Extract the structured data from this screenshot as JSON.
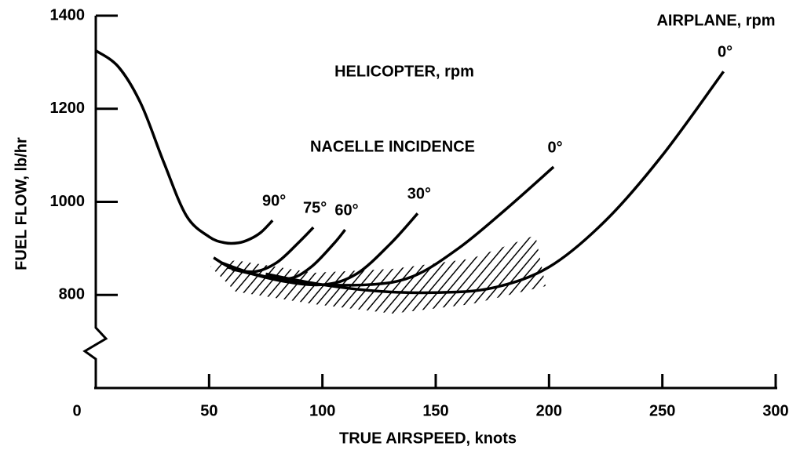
{
  "chart_data": {
    "type": "line",
    "annotations": [
      "HELICOPTER, rpm",
      "NACELLE INCIDENCE",
      "AIRPLANE, rpm"
    ],
    "xlabel": "TRUE AIRSPEED, knots",
    "ylabel": "FUEL FLOW, lb/hr",
    "xlim": [
      0,
      300
    ],
    "xticks": [
      0,
      50,
      100,
      150,
      200,
      250,
      300
    ],
    "ylim": [
      600,
      1400
    ],
    "yticks": [
      800,
      1000,
      1200,
      1400
    ],
    "color": "#000000",
    "series": [
      {
        "name": "90°",
        "x": [
          0,
          10,
          20,
          30,
          40,
          50,
          57,
          63,
          68,
          73,
          78
        ],
        "values": [
          1325,
          1290,
          1210,
          1085,
          970,
          925,
          912,
          912,
          920,
          935,
          960
        ]
      },
      {
        "name": "75°",
        "x": [
          52,
          60,
          70,
          80,
          90,
          96
        ],
        "values": [
          880,
          858,
          850,
          870,
          915,
          945
        ]
      },
      {
        "name": "60°",
        "x": [
          55,
          70,
          85,
          95,
          105,
          110
        ],
        "values": [
          870,
          845,
          835,
          860,
          910,
          940
        ]
      },
      {
        "name": "30°",
        "x": [
          58,
          80,
          100,
          115,
          130,
          142
        ],
        "values": [
          860,
          832,
          822,
          845,
          910,
          975
        ]
      },
      {
        "name": "0°",
        "x": [
          60,
          90,
          120,
          140,
          160,
          180,
          202
        ],
        "values": [
          855,
          826,
          822,
          840,
          900,
          980,
          1075
        ]
      },
      {
        "name": "0°",
        "x": [
          75,
          100,
          125,
          150,
          175,
          200,
          225,
          250,
          277
        ],
        "values": [
          845,
          822,
          808,
          805,
          815,
          860,
          960,
          1100,
          1280
        ]
      }
    ]
  }
}
